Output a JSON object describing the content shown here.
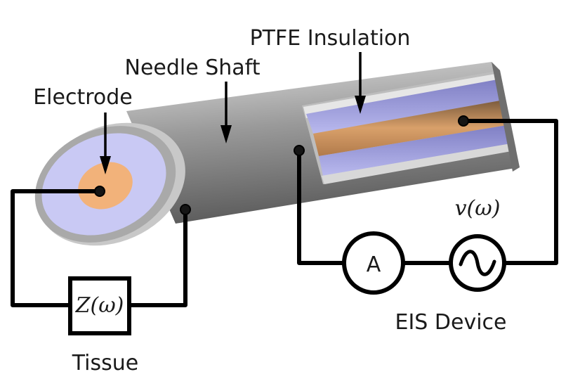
{
  "labels": {
    "ptfe": "PTFE Insulation",
    "needle": "Needle Shaft",
    "electrode": "Electrode",
    "tissue": "Tissue",
    "eis": "EIS Device"
  },
  "math": {
    "impedance": "Z(ω)",
    "voltage": "v(ω)",
    "ammeter": "A"
  },
  "colors": {
    "shaft": "#8c8c8c",
    "ptfe": "#9a9ae0",
    "electrode": "#f2b27a",
    "wire": "#000000"
  },
  "icons": {
    "source": "ac-source-icon",
    "ammeter": "ammeter-icon",
    "impedance": "impedance-box-icon"
  }
}
